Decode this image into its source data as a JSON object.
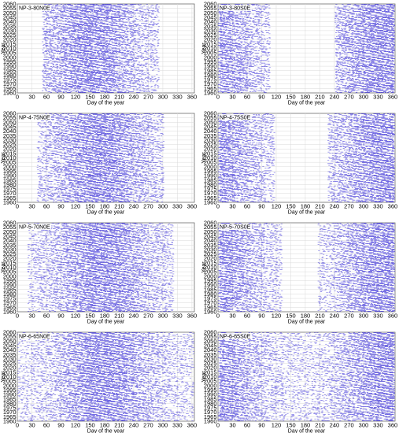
{
  "figure": {
    "mark_color": "#3a2fd8",
    "grid_color": "#d9d9d9"
  },
  "chart_data": [
    {
      "type": "scatter",
      "title": "NP-3-80N0E",
      "xlabel": "Day of the year",
      "ylabel": "Year",
      "xlim": [
        0,
        365
      ],
      "ylim": [
        1960,
        2060
      ],
      "xticks": [
        0,
        30,
        60,
        90,
        120,
        150,
        180,
        210,
        240,
        270,
        300,
        330,
        360
      ],
      "yticks": [
        1960,
        1965,
        1970,
        1975,
        1980,
        1985,
        1990,
        1995,
        2000,
        2005,
        2010,
        2015,
        2020,
        2025,
        2030,
        2035,
        2040,
        2045,
        2050,
        2055,
        2060
      ],
      "grid": true,
      "active_day_ranges": [
        [
          50,
          290
        ]
      ],
      "density_peak_day": 150
    },
    {
      "type": "scatter",
      "title": "NP-3-80S0E",
      "xlabel": "Day of the year",
      "ylabel": "Year",
      "xlim": [
        0,
        365
      ],
      "ylim": [
        1960,
        2060
      ],
      "xticks": [
        0,
        30,
        60,
        90,
        120,
        150,
        180,
        210,
        240,
        270,
        300,
        330,
        360
      ],
      "yticks": [
        1960,
        1965,
        1970,
        1975,
        1980,
        1985,
        1990,
        1995,
        2000,
        2005,
        2010,
        2015,
        2020,
        2025,
        2030,
        2035,
        2040,
        2045,
        2050,
        2055,
        2060
      ],
      "grid": true,
      "active_day_ranges": [
        [
          0,
          105
        ],
        [
          240,
          365
        ]
      ],
      "density_peak_day": 340
    },
    {
      "type": "scatter",
      "title": "NP-4-75N0E",
      "xlabel": "Day of the year",
      "ylabel": "Year",
      "xlim": [
        0,
        365
      ],
      "ylim": [
        1960,
        2060
      ],
      "xticks": [
        0,
        30,
        60,
        90,
        120,
        150,
        180,
        210,
        240,
        270,
        300,
        330,
        360
      ],
      "yticks": [
        1960,
        1965,
        1970,
        1975,
        1980,
        1985,
        1990,
        1995,
        2000,
        2005,
        2010,
        2015,
        2020,
        2025,
        2030,
        2035,
        2040,
        2045,
        2050,
        2055,
        2060
      ],
      "grid": true,
      "active_day_ranges": [
        [
          40,
          300
        ]
      ],
      "density_peak_day": 170
    },
    {
      "type": "scatter",
      "title": "NP-4-75S0E",
      "xlabel": "Day of the year",
      "ylabel": "Year",
      "xlim": [
        0,
        365
      ],
      "ylim": [
        1960,
        2060
      ],
      "xticks": [
        0,
        30,
        60,
        90,
        120,
        150,
        180,
        210,
        240,
        270,
        300,
        330,
        360
      ],
      "yticks": [
        1960,
        1965,
        1970,
        1975,
        1980,
        1985,
        1990,
        1995,
        2000,
        2005,
        2010,
        2015,
        2020,
        2025,
        2030,
        2035,
        2040,
        2045,
        2050,
        2055,
        2060
      ],
      "grid": true,
      "active_day_ranges": [
        [
          0,
          115
        ],
        [
          225,
          365
        ]
      ],
      "density_peak_day": 345
    },
    {
      "type": "scatter",
      "title": "NP-5-70N0E",
      "xlabel": "Day of the year",
      "ylabel": "Year",
      "xlim": [
        0,
        365
      ],
      "ylim": [
        1960,
        2060
      ],
      "xticks": [
        0,
        30,
        60,
        90,
        120,
        150,
        180,
        210,
        240,
        270,
        300,
        330,
        360
      ],
      "yticks": [
        1960,
        1965,
        1970,
        1975,
        1980,
        1985,
        1990,
        1995,
        2000,
        2005,
        2010,
        2015,
        2020,
        2025,
        2030,
        2035,
        2040,
        2045,
        2050,
        2055,
        2060
      ],
      "grid": true,
      "active_day_ranges": [
        [
          20,
          320
        ]
      ],
      "density_peak_day": 175
    },
    {
      "type": "scatter",
      "title": "NP-5-70S0E",
      "xlabel": "Day of the year",
      "ylabel": "Year",
      "xlim": [
        0,
        365
      ],
      "ylim": [
        1960,
        2060
      ],
      "xticks": [
        0,
        30,
        60,
        90,
        120,
        150,
        180,
        210,
        240,
        270,
        300,
        330,
        360
      ],
      "yticks": [
        1960,
        1965,
        1970,
        1975,
        1980,
        1985,
        1990,
        1995,
        2000,
        2005,
        2010,
        2015,
        2020,
        2025,
        2030,
        2035,
        2040,
        2045,
        2050,
        2055,
        2060
      ],
      "grid": true,
      "active_day_ranges": [
        [
          0,
          130
        ],
        [
          205,
          365
        ]
      ],
      "density_peak_day": 350
    },
    {
      "type": "scatter",
      "title": "NP-6-65N0E",
      "xlabel": "Day of the year",
      "ylabel": "Year",
      "xlim": [
        0,
        365
      ],
      "ylim": [
        1960,
        2060
      ],
      "xticks": [
        0,
        30,
        60,
        90,
        120,
        150,
        180,
        210,
        240,
        270,
        300,
        330,
        360
      ],
      "yticks": [
        1960,
        1965,
        1970,
        1975,
        1980,
        1985,
        1990,
        1995,
        2000,
        2005,
        2010,
        2015,
        2020,
        2025,
        2030,
        2035,
        2040,
        2045,
        2050,
        2055,
        2060
      ],
      "grid": true,
      "active_day_ranges": [
        [
          0,
          365
        ]
      ],
      "density_peak_day": 180
    },
    {
      "type": "scatter",
      "title": "NP-6-65S0E",
      "xlabel": "Day of the year",
      "ylabel": "Year",
      "xlim": [
        0,
        365
      ],
      "ylim": [
        1960,
        2060
      ],
      "xticks": [
        0,
        30,
        60,
        90,
        120,
        150,
        180,
        210,
        240,
        270,
        300,
        330,
        360
      ],
      "yticks": [
        1960,
        1965,
        1970,
        1975,
        1980,
        1985,
        1990,
        1995,
        2000,
        2005,
        2010,
        2015,
        2020,
        2025,
        2030,
        2035,
        2040,
        2045,
        2050,
        2055,
        2060
      ],
      "grid": true,
      "active_day_ranges": [
        [
          0,
          365
        ]
      ],
      "density_peak_day": 350
    }
  ]
}
